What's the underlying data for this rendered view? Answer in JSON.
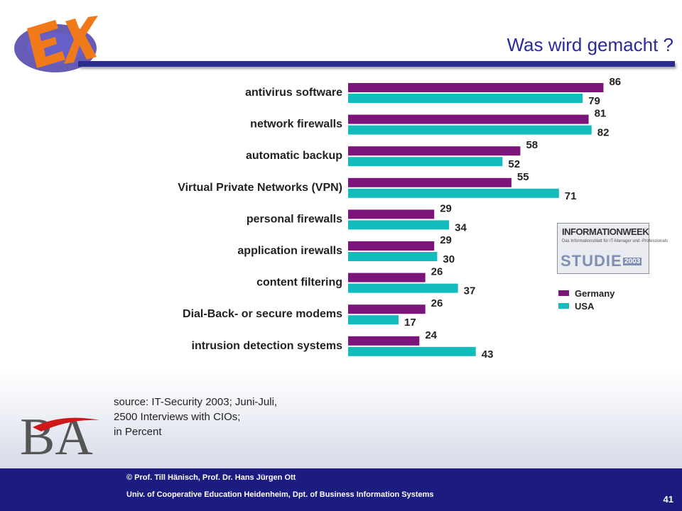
{
  "slide": {
    "title": "Was wird gemacht ?",
    "page_number": "41"
  },
  "footer": {
    "line1": "© Prof. Till Hänisch, Prof. Dr. Hans Jürgen Ott",
    "line2": "Univ. of Cooperative Education Heidenheim, Dpt. of Business Information Systems"
  },
  "source_note": {
    "line1": "source: IT-Security 2003; Juni-Juli,",
    "line2": "2500 Interviews with CIOs;",
    "line3": "in Percent"
  },
  "logos": {
    "informationweek_title": "INFORMATIONWEEK",
    "informationweek_sub": "Das Informationsblatt für IT-Manager und -Professionals",
    "informationweek_studie": "STUDIE",
    "informationweek_year": "2003",
    "ba": "BA",
    "ex": "EX"
  },
  "colors": {
    "germany": "#7b147b",
    "usa": "#12bcbc",
    "title": "#2a2a9a",
    "footer": "#1c1c80"
  },
  "chart_data": {
    "type": "bar",
    "orientation": "horizontal",
    "categories": [
      "antivirus software",
      "network firewalls",
      "automatic backup",
      "Virtual Private Networks (VPN)",
      "personal firewalls",
      "application irewalls",
      "content filtering",
      "Dial-Back- or secure modems",
      "intrusion detection systems"
    ],
    "series": [
      {
        "name": "Germany",
        "color": "#7b147b",
        "values": [
          86,
          81,
          58,
          55,
          29,
          29,
          26,
          26,
          24
        ]
      },
      {
        "name": "USA",
        "color": "#12bcbc",
        "values": [
          79,
          82,
          52,
          71,
          34,
          30,
          37,
          17,
          43
        ]
      }
    ],
    "xlim": [
      0,
      100
    ],
    "legend_position": "right",
    "grid": false,
    "data_labels": true
  }
}
